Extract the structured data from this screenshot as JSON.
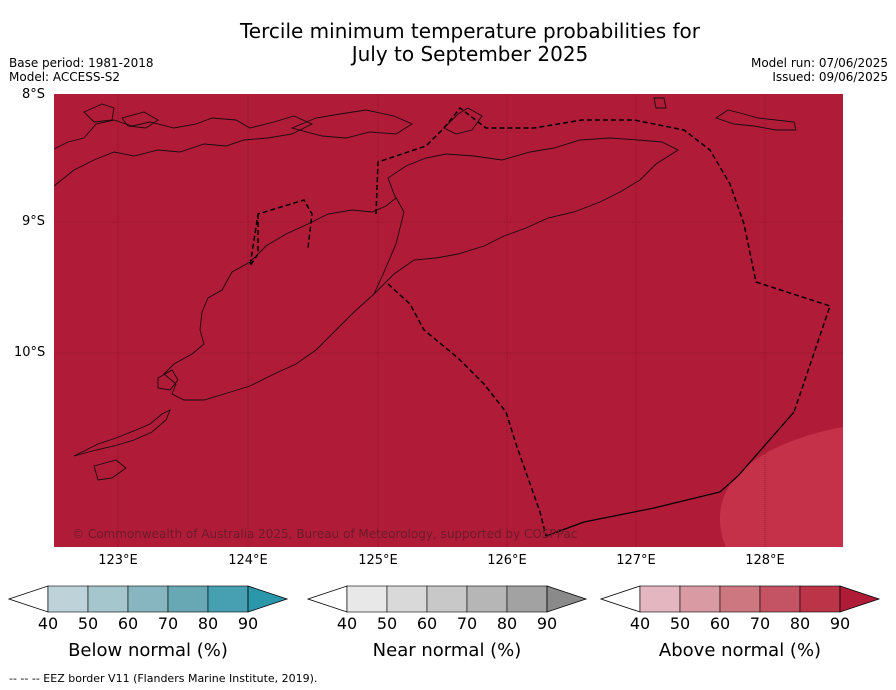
{
  "title": {
    "line1": "Tercile minimum temperature probabilities for",
    "line2": "July to September 2025"
  },
  "meta_left": {
    "base_period": "Base period: 1981-2018",
    "model": "Model: ACCESS-S2"
  },
  "meta_right": {
    "model_run": "Model run: 07/06/2025",
    "issued": "Issued: 09/06/2025"
  },
  "map": {
    "lat_labels": [
      "8°S",
      "9°S",
      "10°S"
    ],
    "lon_labels": [
      "123°E",
      "124°E",
      "125°E",
      "126°E",
      "127°E",
      "128°E"
    ],
    "extent": {
      "lon_min": 122.5,
      "lon_max": 128.6,
      "lat_north": -8.0,
      "lat_south": -11.5
    },
    "dominant_category": "Above normal",
    "dominant_probability": "90%",
    "colors": {
      "above_90": "#b01c38",
      "above_80": "#c43148"
    },
    "credit": "© Commonwealth of Australia 2025, Bureau of Meteorology, supported by COSPPac"
  },
  "colorbars": [
    {
      "label": "Below normal (%)",
      "ticks": [
        "40",
        "50",
        "60",
        "70",
        "80",
        "90"
      ],
      "colors": [
        "#ffffff",
        "#bdd3d9",
        "#a5c6cc",
        "#87b6c0",
        "#68a7b4",
        "#46a0b1",
        "#2b97aa"
      ]
    },
    {
      "label": "Near normal (%)",
      "ticks": [
        "40",
        "50",
        "60",
        "70",
        "80",
        "90"
      ],
      "colors": [
        "#ffffff",
        "#e8e8e8",
        "#d9d9d9",
        "#c8c8c8",
        "#b6b6b6",
        "#a2a2a2",
        "#8a8a8a"
      ]
    },
    {
      "label": "Above normal (%)",
      "ticks": [
        "40",
        "50",
        "60",
        "70",
        "80",
        "90"
      ],
      "colors": [
        "#ffffff",
        "#e4b6bf",
        "#d99aa3",
        "#cd7880",
        "#c45463",
        "#bc3448",
        "#b01c38"
      ]
    }
  ],
  "footer": "--  --  -- EEZ border V11 (Flanders Marine Institute, 2019)."
}
